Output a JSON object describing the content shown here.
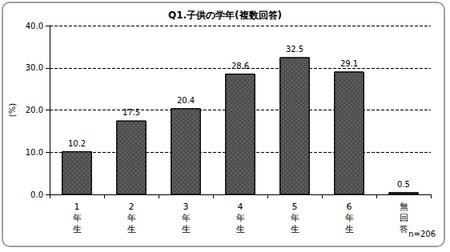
{
  "chart_data": {
    "type": "bar",
    "title": "Q1.子供の学年(複数回答)",
    "ylabel": "(%)",
    "annotation": "n=206",
    "categories": [
      "1年生",
      "2年生",
      "3年生",
      "4年生",
      "5年生",
      "6年生",
      "無回答"
    ],
    "values": [
      10.2,
      17.5,
      20.4,
      28.6,
      32.5,
      29.1,
      0.5
    ],
    "color": "#4d4d4d",
    "ylim": [
      0,
      40
    ],
    "yticks": [
      {
        "value": 0,
        "label": "0.0"
      },
      {
        "value": 10,
        "label": "10.0"
      },
      {
        "value": 20,
        "label": "20.0"
      },
      {
        "value": 30,
        "label": "30.0"
      },
      {
        "value": 40,
        "label": "40.0"
      }
    ],
    "grid": true,
    "data_labels": true
  }
}
